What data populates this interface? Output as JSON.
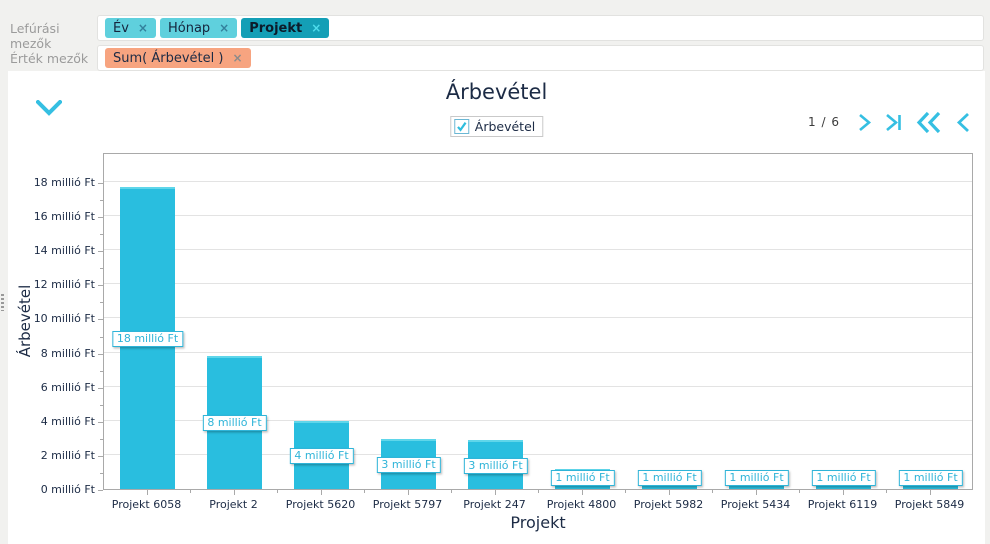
{
  "field_panel": {
    "drill_label": "Lefúrási mezők",
    "value_label": "Érték mezők",
    "drill_fields": [
      {
        "label": "Év",
        "close": "×"
      },
      {
        "label": "Hónap",
        "close": "×"
      },
      {
        "label": "Projekt",
        "close": "×"
      }
    ],
    "value_fields": [
      {
        "label": "Sum( Árbevétel )",
        "close": "×"
      }
    ]
  },
  "header": {
    "page_indicator": "1 / 6"
  },
  "legend": {
    "label": "Árbevétel",
    "checked": true
  },
  "colors": {
    "bar": "#29bedf",
    "bar_top": "#5fd6ea",
    "accent_cyan": "#35bfe2",
    "chip_light": "#5fd0dd",
    "chip_active": "#149fb6",
    "chip_salmon": "#f7a480",
    "text_dark": "#1c2b45",
    "grid": "#e3e3e3",
    "axis": "#a9a9a9"
  },
  "chart_data": {
    "type": "bar",
    "title": "Árbevétel",
    "xlabel": "Projekt",
    "ylabel": "Árbevétel",
    "categories": [
      "Projekt 6058",
      "Projekt 2",
      "Projekt 5620",
      "Projekt 5797",
      "Projekt 247",
      "Projekt 4800",
      "Projekt 5982",
      "Projekt 5434",
      "Projekt 6119",
      "Projekt 5849"
    ],
    "values": [
      17.7,
      7.8,
      4.0,
      2.95,
      2.85,
      1.2,
      1.1,
      1.05,
      1.0,
      1.0
    ],
    "bar_labels": [
      "18 millió Ft",
      "8 millió Ft",
      "4 millió Ft",
      "3 millió Ft",
      "3 millió Ft",
      "1 millió Ft",
      "1 millió Ft",
      "1 millió Ft",
      "1 millió Ft",
      "1 millió Ft"
    ],
    "y_tick_values": [
      0,
      2,
      4,
      6,
      8,
      10,
      12,
      14,
      16,
      18
    ],
    "y_tick_labels": [
      "0 millió Ft",
      "2 millió Ft",
      "4 millió Ft",
      "6 millió Ft",
      "8 millió Ft",
      "10 millió Ft",
      "12 millió Ft",
      "14 millió Ft",
      "16 millió Ft",
      "18 millió Ft"
    ],
    "y_minor_step": 1,
    "ylim": [
      0,
      19.75
    ],
    "grid": true,
    "legend_position": "top",
    "series_name": "Árbevétel"
  }
}
